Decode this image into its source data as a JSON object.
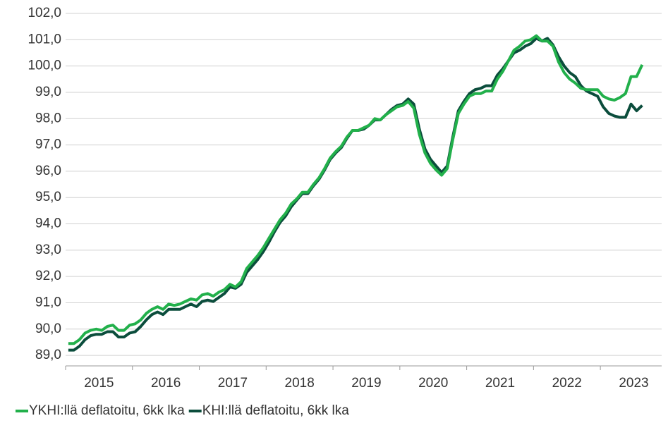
{
  "chart_data": {
    "type": "line",
    "categories": [
      null,
      null,
      null,
      null,
      null,
      null,
      "2015",
      null,
      null,
      null,
      null,
      null,
      null,
      null,
      null,
      null,
      null,
      null,
      "2016",
      null,
      null,
      null,
      null,
      null,
      null,
      null,
      null,
      null,
      null,
      null,
      "2017",
      null,
      null,
      null,
      null,
      null,
      null,
      null,
      null,
      null,
      null,
      null,
      "2018",
      null,
      null,
      null,
      null,
      null,
      null,
      null,
      null,
      null,
      null,
      null,
      "2019",
      null,
      null,
      null,
      null,
      null,
      null,
      null,
      null,
      null,
      null,
      null,
      "2020",
      null,
      null,
      null,
      null,
      null,
      null,
      null,
      null,
      null,
      null,
      null,
      "2021",
      null,
      null,
      null,
      null,
      null,
      null,
      null,
      null,
      null,
      null,
      null,
      "2022",
      null,
      null,
      null,
      null,
      null,
      null,
      null,
      null,
      null,
      null,
      null,
      "2023",
      null,
      null,
      null,
      null
    ],
    "series": [
      {
        "name": "YKHI:llä deflatoitu, 6kk lka",
        "color": "#22b04b",
        "values": [
          89.45,
          89.45,
          89.6,
          89.85,
          89.95,
          90.0,
          89.95,
          90.1,
          90.15,
          89.95,
          89.95,
          90.15,
          90.2,
          90.35,
          90.6,
          90.75,
          90.85,
          90.75,
          90.95,
          90.9,
          90.95,
          91.05,
          91.15,
          91.1,
          91.3,
          91.35,
          91.25,
          91.4,
          91.5,
          91.7,
          91.6,
          91.8,
          92.3,
          92.55,
          92.8,
          93.1,
          93.45,
          93.8,
          94.15,
          94.4,
          94.75,
          94.95,
          95.2,
          95.2,
          95.5,
          95.75,
          96.1,
          96.5,
          96.75,
          96.95,
          97.3,
          97.55,
          97.55,
          97.65,
          97.75,
          98.0,
          97.95,
          98.15,
          98.3,
          98.45,
          98.5,
          98.65,
          98.4,
          97.4,
          96.7,
          96.3,
          96.05,
          95.85,
          96.1,
          97.2,
          98.2,
          98.55,
          98.85,
          98.95,
          98.95,
          99.05,
          99.05,
          99.5,
          99.8,
          100.2,
          100.6,
          100.75,
          100.95,
          101.0,
          101.15,
          100.95,
          100.95,
          100.75,
          100.15,
          99.75,
          99.5,
          99.35,
          99.15,
          99.1,
          99.1,
          99.1,
          98.85,
          98.75,
          98.7,
          98.8,
          98.95,
          99.6,
          99.6,
          100.05,
          null,
          null,
          null
        ]
      },
      {
        "name": "KHI:llä deflatoitu, 6kk lka",
        "color": "#0b4d3c",
        "values": [
          89.2,
          89.2,
          89.35,
          89.6,
          89.75,
          89.8,
          89.8,
          89.9,
          89.9,
          89.7,
          89.7,
          89.85,
          89.9,
          90.1,
          90.35,
          90.55,
          90.65,
          90.55,
          90.75,
          90.75,
          90.75,
          90.85,
          90.95,
          90.85,
          91.05,
          91.1,
          91.05,
          91.2,
          91.35,
          91.6,
          91.55,
          91.7,
          92.15,
          92.4,
          92.65,
          92.95,
          93.3,
          93.7,
          94.05,
          94.3,
          94.65,
          94.9,
          95.15,
          95.15,
          95.45,
          95.7,
          96.05,
          96.45,
          96.7,
          96.9,
          97.25,
          97.55,
          97.55,
          97.6,
          97.75,
          97.95,
          97.95,
          98.15,
          98.35,
          98.5,
          98.55,
          98.75,
          98.55,
          97.6,
          96.85,
          96.45,
          96.2,
          95.95,
          96.2,
          97.3,
          98.3,
          98.65,
          98.95,
          99.1,
          99.15,
          99.25,
          99.25,
          99.65,
          99.9,
          100.2,
          100.5,
          100.6,
          100.75,
          100.85,
          101.05,
          100.95,
          101.05,
          100.8,
          100.35,
          100.0,
          99.75,
          99.6,
          99.25,
          99.05,
          98.95,
          98.85,
          98.45,
          98.2,
          98.1,
          98.05,
          98.05,
          98.55,
          98.3,
          98.5,
          null,
          null,
          null
        ]
      }
    ],
    "ylim": [
      88.6,
      102.0
    ],
    "yticks": [
      {
        "value": 89,
        "label": "89,0"
      },
      {
        "value": 90,
        "label": "90,0"
      },
      {
        "value": 91,
        "label": "91,0"
      },
      {
        "value": 92,
        "label": "92,0"
      },
      {
        "value": 93,
        "label": "93,0"
      },
      {
        "value": 94,
        "label": "94,0"
      },
      {
        "value": 95,
        "label": "95,0"
      },
      {
        "value": 96,
        "label": "96,0"
      },
      {
        "value": 97,
        "label": "97,0"
      },
      {
        "value": 98,
        "label": "98,0"
      },
      {
        "value": 99,
        "label": "99,0"
      },
      {
        "value": 100,
        "label": "100,0"
      },
      {
        "value": 101,
        "label": "101,0"
      },
      {
        "value": 102,
        "label": "102,0"
      }
    ],
    "grid": true,
    "legend": "bottom"
  }
}
